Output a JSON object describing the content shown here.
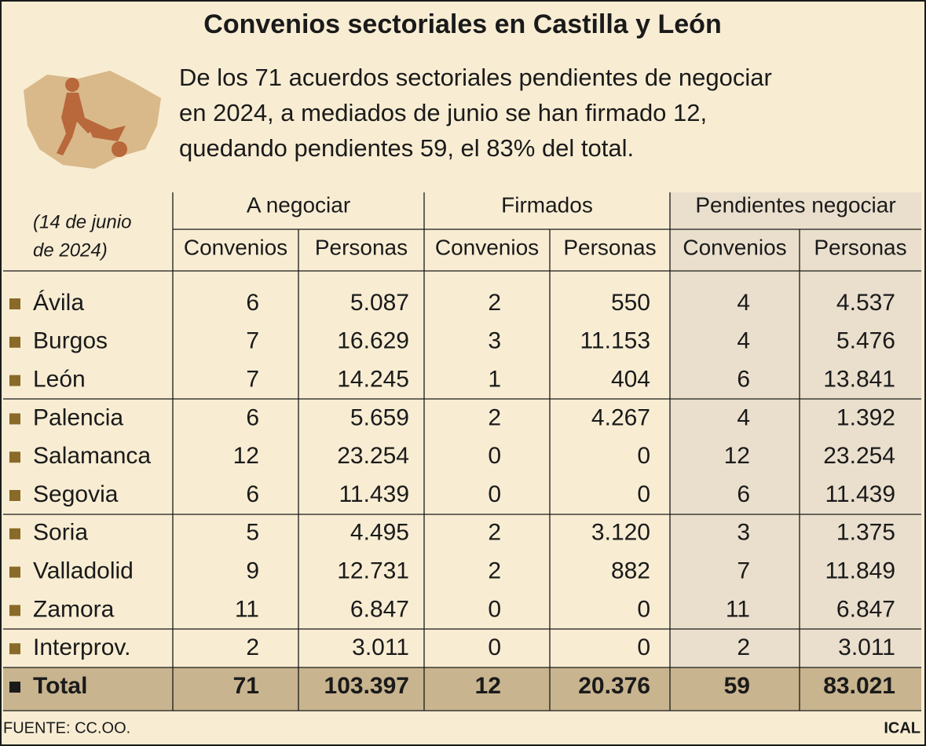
{
  "header": {
    "title": "Convenios sectoriales en Castilla y León",
    "description": [
      "De los 71 acuerdos sectoriales pendientes de negociar",
      "en 2024, a mediados de junio se han firmado 12,",
      "quedando pendientes 59, el 83% del total."
    ]
  },
  "table": {
    "date_note": [
      "(14 de junio",
      "de 2024)"
    ],
    "groups": [
      "A negociar",
      "Firmados",
      "Pendientes negociar"
    ],
    "subheaders": [
      "Convenios",
      "Personas",
      "Convenios",
      "Personas",
      "Convenios",
      "Personas"
    ],
    "rows": [
      [
        "Ávila",
        "6",
        "5.087",
        "2",
        "550",
        "4",
        "4.537"
      ],
      [
        "Burgos",
        "7",
        "16.629",
        "3",
        "11.153",
        "4",
        "5.476"
      ],
      [
        "León",
        "7",
        "14.245",
        "1",
        "404",
        "6",
        "13.841"
      ],
      [
        "Palencia",
        "6",
        "5.659",
        "2",
        "4.267",
        "4",
        "1.392"
      ],
      [
        "Salamanca",
        "12",
        "23.254",
        "0",
        "0",
        "12",
        "23.254"
      ],
      [
        "Segovia",
        "6",
        "11.439",
        "0",
        "0",
        "6",
        "11.439"
      ],
      [
        "Soria",
        "5",
        "4.495",
        "2",
        "3.120",
        "3",
        "1.375"
      ],
      [
        "Valladolid",
        "9",
        "12.731",
        "2",
        "882",
        "7",
        "11.849"
      ],
      [
        "Zamora",
        "11",
        "6.847",
        "0",
        "0",
        "11",
        "6.847"
      ],
      [
        "Interprov.",
        "2",
        "3.011",
        "0",
        "0",
        "2",
        "3.011"
      ]
    ],
    "total": [
      "Total",
      "71",
      "103.397",
      "12",
      "20.376",
      "59",
      "83.021"
    ]
  },
  "footer": {
    "source": "FUENTE: CC.OO.",
    "agency": "ICAL"
  }
}
